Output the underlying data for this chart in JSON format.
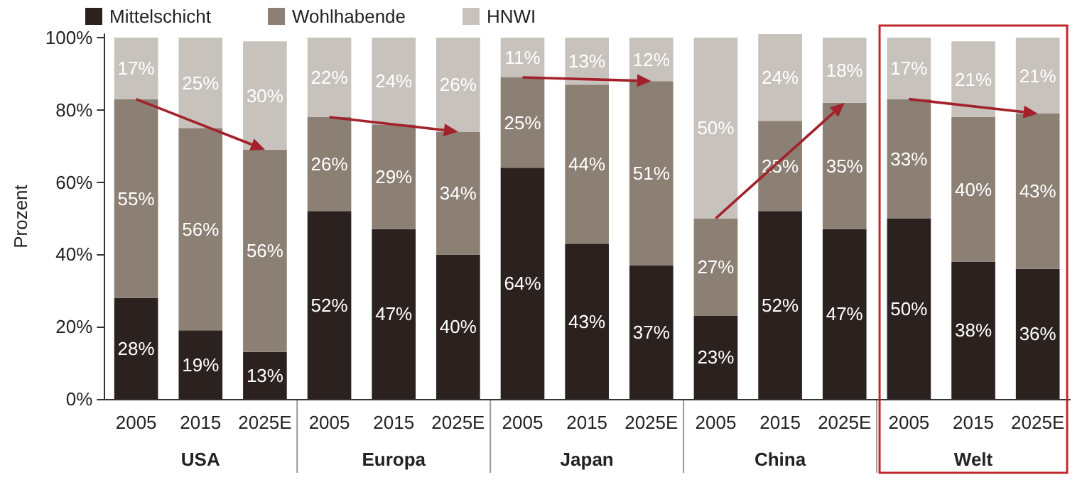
{
  "chart_data": {
    "type": "bar",
    "stacked": true,
    "categories": [
      "2005",
      "2015",
      "2025E",
      "2005",
      "2015",
      "2025E",
      "2005",
      "2015",
      "2025E",
      "2005",
      "2015",
      "2025E",
      "2005",
      "2015",
      "2025E"
    ],
    "series": [
      {
        "name": "Mittelschicht",
        "color": "#2b2220",
        "values": [
          28,
          19,
          13,
          52,
          47,
          40,
          64,
          43,
          37,
          23,
          52,
          47,
          50,
          38,
          36
        ],
        "value_labels": [
          "28%",
          "19%",
          "13%",
          "52%",
          "47%",
          "40%",
          "64%",
          "43%",
          "37%",
          "23%",
          "52%",
          "47%",
          "50%",
          "38%",
          "36%"
        ]
      },
      {
        "name": "Wohlhabende",
        "color": "#8c7f74",
        "values": [
          55,
          56,
          56,
          26,
          29,
          34,
          25,
          44,
          51,
          27,
          25,
          35,
          33,
          40,
          43
        ],
        "value_labels": [
          "55%",
          "56%",
          "56%",
          "26%",
          "29%",
          "34%",
          "25%",
          "44%",
          "51%",
          "27%",
          "25%",
          "35%",
          "33%",
          "40%",
          "43%"
        ]
      },
      {
        "name": "HNWI",
        "color": "#c8c2bc",
        "values": [
          17,
          25,
          30,
          22,
          24,
          26,
          11,
          13,
          12,
          50,
          24,
          18,
          17,
          21,
          21
        ],
        "value_labels": [
          "17%",
          "25%",
          "30%",
          "22%",
          "24%",
          "26%",
          "11%",
          "13%",
          "12%",
          "50%",
          "24%",
          "18%",
          "17%",
          "21%",
          "21%"
        ]
      }
    ],
    "ylabel": "Prozent",
    "ylim": [
      0,
      101
    ],
    "yticks": [
      {
        "value": 0,
        "label": "0%"
      },
      {
        "value": 20,
        "label": "20%"
      },
      {
        "value": 40,
        "label": "40%"
      },
      {
        "value": 60,
        "label": "60%"
      },
      {
        "value": 80,
        "label": "80%"
      },
      {
        "value": 100,
        "label": "100%"
      }
    ],
    "annotations": [
      "USA",
      "Europa",
      "Japan",
      "China",
      "Welt"
    ],
    "legend": "top left",
    "grid": false
  }
}
